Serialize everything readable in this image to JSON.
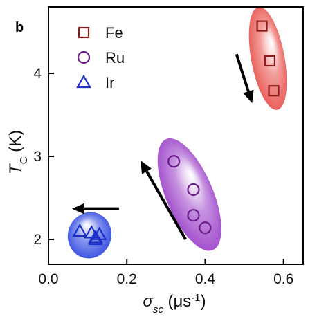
{
  "chart_data": {
    "type": "scatter",
    "panel_label": "b",
    "xlabel": {
      "symbol": "σ",
      "subscript": "sc",
      "unit": " (μs",
      "exp": "-1",
      "close": ")"
    },
    "ylabel": {
      "symbol": "T",
      "subscript": "C",
      "unit": " (K)"
    },
    "xlim": [
      0.0,
      0.65
    ],
    "ylim": [
      1.7,
      4.8
    ],
    "xticks": [
      0.0,
      0.2,
      0.4,
      0.6
    ],
    "xtick_labels": [
      "0.0",
      "0.2",
      "0.4",
      "0.6"
    ],
    "yticks": [
      2,
      3,
      4
    ],
    "ytick_labels": [
      "2",
      "3",
      "4"
    ],
    "legend_position": "top-left",
    "series": [
      {
        "name": "Fe",
        "marker": "square",
        "color": "#8b1a1a",
        "blob_color": "#e8504a",
        "points": [
          {
            "x": 0.545,
            "y": 4.57
          },
          {
            "x": 0.565,
            "y": 4.15
          },
          {
            "x": 0.575,
            "y": 3.79
          }
        ]
      },
      {
        "name": "Ru",
        "marker": "circle",
        "color": "#6a1b8a",
        "blob_color": "#9a3fc8",
        "points": [
          {
            "x": 0.32,
            "y": 2.94
          },
          {
            "x": 0.37,
            "y": 2.6
          },
          {
            "x": 0.37,
            "y": 2.29
          },
          {
            "x": 0.4,
            "y": 2.14
          }
        ]
      },
      {
        "name": "Ir",
        "marker": "triangle",
        "color": "#1a2ec8",
        "blob_color": "#2a44e0",
        "points": [
          {
            "x": 0.08,
            "y": 2.1
          },
          {
            "x": 0.11,
            "y": 2.08
          },
          {
            "x": 0.12,
            "y": 2.02
          },
          {
            "x": 0.13,
            "y": 2.06
          },
          {
            "x": 0.12,
            "y": 2.0
          }
        ]
      }
    ],
    "arrows": [
      {
        "from": [
          0.48,
          4.23
        ],
        "to": [
          0.52,
          3.64
        ]
      },
      {
        "from": [
          0.35,
          2.0
        ],
        "to": [
          0.235,
          2.95
        ]
      },
      {
        "from": [
          0.18,
          2.37
        ],
        "to": [
          0.06,
          2.37
        ]
      }
    ]
  }
}
